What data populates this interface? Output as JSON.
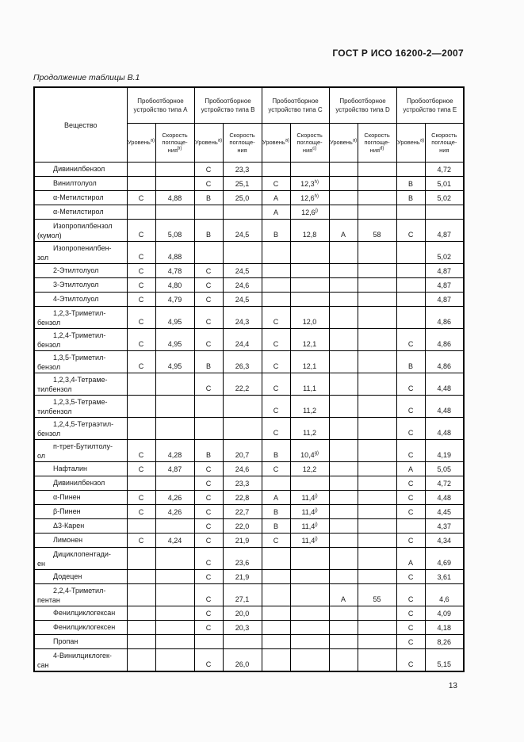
{
  "page": {
    "doc_code": "ГОСТ Р ИСО 16200-2—2007",
    "caption": "Продолжение таблицы В.1",
    "page_number": "13"
  },
  "colors": {
    "paper": "#fbfbfb",
    "table_background": "#ffffff",
    "ink": "#1a1a1a",
    "border": "#000000"
  },
  "table": {
    "substance_header": "Вещество",
    "groups": [
      {
        "title": "Пробоотборное\nустройство типа A",
        "level": "Уровень^а)",
        "rate": "Скорость\nпоглоще-\nния^b)"
      },
      {
        "title": "Пробоотборное\nустройство типа B",
        "level": "Уровень^а)",
        "rate": "Скорость\nпоглоще-\nния"
      },
      {
        "title": "Пробоотборное\nустройство типа C",
        "level": "Уровень^а)",
        "rate": "Скорость\nпоглоще-\nния^c)"
      },
      {
        "title": "Пробоотборное\nустройство типа D",
        "level": "Уровень^а)",
        "rate": "Скорость\nпоглоще-\nния^d)"
      },
      {
        "title": "Пробоотборное\nустройство типа E",
        "level": "Уровень^а)",
        "rate": "Скорость\nпоглоще-\nния"
      }
    ],
    "rows": [
      {
        "name": "Дивинилбензол",
        "cells": [
          "",
          "",
          "C",
          "23,3",
          "",
          "",
          "",
          "",
          "",
          "4,72"
        ]
      },
      {
        "name": "Винилтолуол",
        "cells": [
          "",
          "",
          "C",
          "25,1",
          "C",
          "12,3^h)",
          "",
          "",
          "B",
          "5,01"
        ]
      },
      {
        "name": "α-Метилстирол",
        "cells": [
          "C",
          "4,88",
          "B",
          "25,0",
          "A",
          "12,6^h)",
          "",
          "",
          "B",
          "5,02"
        ]
      },
      {
        "name": "α-Метилстирол",
        "cells": [
          "",
          "",
          "",
          "",
          "A",
          "12,6^j)",
          "",
          "",
          "",
          ""
        ]
      },
      {
        "name": "Изопропилбензол\n(кумол)",
        "cells": [
          "C",
          "5,08",
          "B",
          "24,5",
          "B",
          "12,8",
          "A",
          "58",
          "C",
          "4,87"
        ]
      },
      {
        "name": "Изопропенилбен-\nзол",
        "cells": [
          "C",
          "4,88",
          "",
          "",
          "",
          "",
          "",
          "",
          "",
          "5,02"
        ]
      },
      {
        "name": "2-Этилтолуол",
        "cells": [
          "C",
          "4,78",
          "C",
          "24,5",
          "",
          "",
          "",
          "",
          "",
          "4,87"
        ]
      },
      {
        "name": "3-Этилтолуол",
        "cells": [
          "C",
          "4,80",
          "C",
          "24,6",
          "",
          "",
          "",
          "",
          "",
          "4,87"
        ]
      },
      {
        "name": "4-Этилтолуол",
        "cells": [
          "C",
          "4,79",
          "C",
          "24,5",
          "",
          "",
          "",
          "",
          "",
          "4,87"
        ]
      },
      {
        "name": "1,2,3-Триметил-\nбензол",
        "cells": [
          "C",
          "4,95",
          "C",
          "24,3",
          "C",
          "12,0",
          "",
          "",
          "",
          "4,86"
        ]
      },
      {
        "name": "1,2,4-Триметил-\nбензол",
        "cells": [
          "C",
          "4,95",
          "C",
          "24,4",
          "C",
          "12,1",
          "",
          "",
          "C",
          "4,86"
        ]
      },
      {
        "name": "1,3,5-Триметил-\nбензол",
        "cells": [
          "C",
          "4,95",
          "B",
          "26,3",
          "C",
          "12,1",
          "",
          "",
          "B",
          "4,86"
        ]
      },
      {
        "name": "1,2,3,4-Тетраме-\nтилбензол",
        "cells": [
          "",
          "",
          "C",
          "22,2",
          "C",
          "11,1",
          "",
          "",
          "C",
          "4,48"
        ]
      },
      {
        "name": "1,2,3,5-Тетраме-\nтилбензол",
        "cells": [
          "",
          "",
          "",
          "",
          "C",
          "11,2",
          "",
          "",
          "C",
          "4,48"
        ]
      },
      {
        "name": "1,2,4,5-Тетраэтил-\nбензол",
        "cells": [
          "",
          "",
          "",
          "",
          "C",
          "11,2",
          "",
          "",
          "C",
          "4,48"
        ]
      },
      {
        "name": "п-трет-Бутилтолу-\nол",
        "cells": [
          "C",
          "4,28",
          "B",
          "20,7",
          "B",
          "10,4^g)",
          "",
          "",
          "C",
          "4,19"
        ]
      },
      {
        "name": "Нафталин",
        "cells": [
          "C",
          "4,87",
          "C",
          "24,6",
          "C",
          "12,2",
          "",
          "",
          "A",
          "5,05"
        ]
      },
      {
        "name": "Дивинилбензол",
        "cells": [
          "",
          "",
          "C",
          "23,3",
          "",
          "",
          "",
          "",
          "C",
          "4,72"
        ]
      },
      {
        "name": "α-Пинен",
        "cells": [
          "C",
          "4,26",
          "C",
          "22,8",
          "A",
          "11,4^j)",
          "",
          "",
          "C",
          "4,48"
        ]
      },
      {
        "name": "β-Пинен",
        "cells": [
          "C",
          "4,26",
          "C",
          "22,7",
          "B",
          "11,4^j)",
          "",
          "",
          "C",
          "4,45"
        ]
      },
      {
        "name": "Δ3-Карен",
        "cells": [
          "",
          "",
          "C",
          "22,0",
          "B",
          "11,4^j)",
          "",
          "",
          "",
          "4,37"
        ]
      },
      {
        "name": "Лимонен",
        "cells": [
          "C",
          "4,24",
          "C",
          "21,9",
          "C",
          "11,4^j)",
          "",
          "",
          "C",
          "4,34"
        ]
      },
      {
        "name": "Дициклопентади-\nен",
        "cells": [
          "",
          "",
          "C",
          "23,6",
          "",
          "",
          "",
          "",
          "A",
          "4,69"
        ]
      },
      {
        "name": "Додецен",
        "cells": [
          "",
          "",
          "C",
          "21,9",
          "",
          "",
          "",
          "",
          "C",
          "3,61"
        ]
      },
      {
        "name": "2,2,4-Триметил-\nпентан",
        "cells": [
          "",
          "",
          "C",
          "27,1",
          "",
          "",
          "A",
          "55",
          "C",
          "4,6"
        ]
      },
      {
        "name": "Фенилциклогексан",
        "cells": [
          "",
          "",
          "C",
          "20,0",
          "",
          "",
          "",
          "",
          "C",
          "4,09"
        ]
      },
      {
        "name": "Фенилциклогексен",
        "cells": [
          "",
          "",
          "C",
          "20,3",
          "",
          "",
          "",
          "",
          "C",
          "4,18"
        ]
      },
      {
        "name": "Пропан",
        "cells": [
          "",
          "",
          "",
          "",
          "",
          "",
          "",
          "",
          "C",
          "8,26"
        ]
      },
      {
        "name": "4-Винилциклогек-\nсан",
        "cells": [
          "",
          "",
          "C",
          "26,0",
          "",
          "",
          "",
          "",
          "C",
          "5,15"
        ]
      }
    ]
  }
}
